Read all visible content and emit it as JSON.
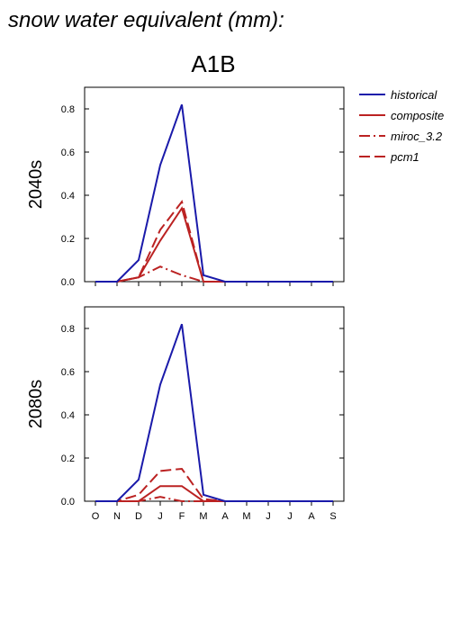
{
  "page_title": "snow water equivalent (mm):",
  "scenario_title": "A1B",
  "legend": [
    {
      "label": "historical",
      "color": "#1a1aaa",
      "dash": "solid"
    },
    {
      "label": "composite",
      "color": "#bb2222",
      "dash": "solid"
    },
    {
      "label": "miroc_3.2",
      "color": "#bb2222",
      "dash": "dashdot"
    },
    {
      "label": "pcm1",
      "color": "#bb2222",
      "dash": "dashed"
    }
  ],
  "chart_data": [
    {
      "type": "line",
      "period_label": "2040s",
      "categories": [
        "O",
        "N",
        "D",
        "J",
        "F",
        "M",
        "A",
        "M",
        "J",
        "J",
        "A",
        "S"
      ],
      "ylim": [
        0,
        0.9
      ],
      "yticks": [
        0.0,
        0.2,
        0.4,
        0.6,
        0.8
      ],
      "ytick_labels": [
        "0.0",
        "0.2",
        "0.4",
        "0.6",
        "0.8"
      ],
      "show_xtick_labels": false,
      "series": [
        {
          "name": "historical",
          "values": [
            0,
            0,
            0.1,
            0.54,
            0.82,
            0.03,
            0,
            0,
            0,
            0,
            0,
            0
          ]
        },
        {
          "name": "composite",
          "values": [
            0,
            0,
            0.02,
            0.19,
            0.34,
            0,
            0,
            0,
            0,
            0,
            0,
            0
          ]
        },
        {
          "name": "miroc_3.2",
          "values": [
            0,
            0,
            0.02,
            0.07,
            0.03,
            0,
            0,
            0,
            0,
            0,
            0,
            0
          ]
        },
        {
          "name": "pcm1",
          "values": [
            0,
            0,
            0.02,
            0.24,
            0.37,
            0,
            0,
            0,
            0,
            0,
            0,
            0
          ]
        }
      ]
    },
    {
      "type": "line",
      "period_label": "2080s",
      "categories": [
        "O",
        "N",
        "D",
        "J",
        "F",
        "M",
        "A",
        "M",
        "J",
        "J",
        "A",
        "S"
      ],
      "ylim": [
        0,
        0.9
      ],
      "yticks": [
        0.0,
        0.2,
        0.4,
        0.6,
        0.8
      ],
      "ytick_labels": [
        "0.0",
        "0.2",
        "0.4",
        "0.6",
        "0.8"
      ],
      "show_xtick_labels": true,
      "series": [
        {
          "name": "historical",
          "values": [
            0,
            0,
            0.1,
            0.54,
            0.82,
            0.03,
            0,
            0,
            0,
            0,
            0,
            0
          ]
        },
        {
          "name": "composite",
          "values": [
            0,
            0,
            0,
            0.07,
            0.07,
            0,
            0,
            0,
            0,
            0,
            0,
            0
          ]
        },
        {
          "name": "miroc_3.2",
          "values": [
            0,
            0,
            0,
            0.02,
            0,
            0,
            0,
            0,
            0,
            0,
            0,
            0
          ]
        },
        {
          "name": "pcm1",
          "values": [
            0,
            0,
            0.03,
            0.14,
            0.15,
            0.01,
            0,
            0,
            0,
            0,
            0,
            0
          ]
        }
      ]
    }
  ]
}
